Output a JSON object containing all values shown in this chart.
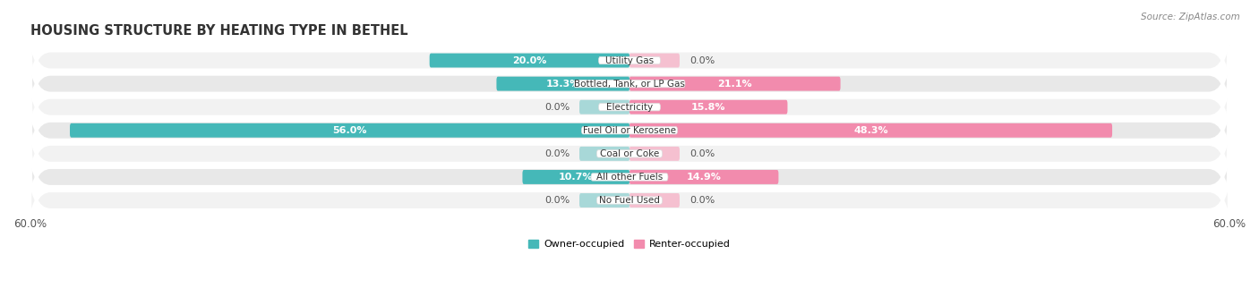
{
  "title": "HOUSING STRUCTURE BY HEATING TYPE IN BETHEL",
  "source": "Source: ZipAtlas.com",
  "categories": [
    "Utility Gas",
    "Bottled, Tank, or LP Gas",
    "Electricity",
    "Fuel Oil or Kerosene",
    "Coal or Coke",
    "All other Fuels",
    "No Fuel Used"
  ],
  "owner_values": [
    20.0,
    13.3,
    0.0,
    56.0,
    0.0,
    10.7,
    0.0
  ],
  "renter_values": [
    0.0,
    21.1,
    15.8,
    48.3,
    0.0,
    14.9,
    0.0
  ],
  "owner_color": "#45B8B8",
  "renter_color": "#F28BAD",
  "owner_stub_color": "#A8D8D8",
  "renter_stub_color": "#F5C0D0",
  "row_bg_odd": "#F2F2F2",
  "row_bg_even": "#E8E8E8",
  "x_max": 60.0,
  "x_min": -60.0,
  "bar_height": 0.58,
  "stub_value": 5.0,
  "label_fontsize": 8.0,
  "title_fontsize": 10.5,
  "axis_label_fontsize": 8.5,
  "title_color": "#333333",
  "label_color_dark": "#555555",
  "label_color_white": "#FFFFFF"
}
